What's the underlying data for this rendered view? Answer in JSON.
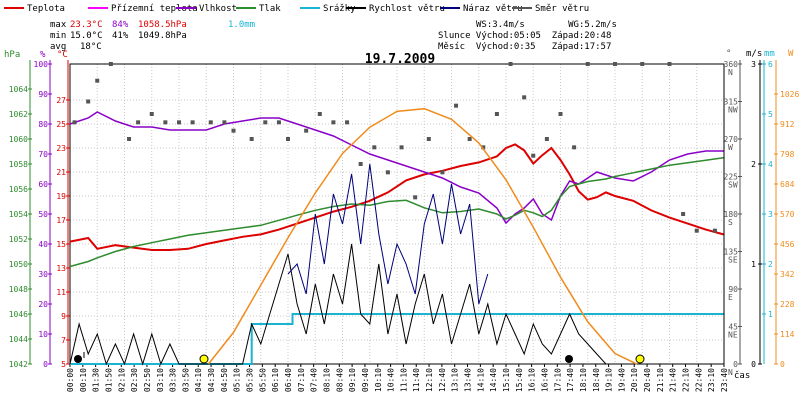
{
  "legend": [
    {
      "label": "Teplota",
      "color": "#dd0000"
    },
    {
      "label": "Přízemní teplota",
      "color": "#ff00ff"
    },
    {
      "label": "Vlhkost",
      "color": "#8a00c8"
    },
    {
      "label": "Tlak",
      "color": "#2e8b2e"
    },
    {
      "label": "Srážky",
      "color": "#19b4d2"
    },
    {
      "label": "Rychlost větru",
      "color": "#000000"
    },
    {
      "label": "Náraz větru",
      "color": "#00007a"
    },
    {
      "label": "Směr větru",
      "color": "#555555"
    }
  ],
  "stats": {
    "max_label": "max",
    "max_temp": "23.3°C",
    "max_hum": "84%",
    "max_press": "1058.5hPa",
    "max_rain": "1.0mm",
    "min_label": "min",
    "min_temp": "15.0°C",
    "min_hum": "41%",
    "min_press": "1049.8hPa",
    "avg_label": "avg",
    "avg_temp": "18°C"
  },
  "astro": {
    "line1": "WS:3.4m/s        WG:5.2m/s",
    "line2": "Slunce Východ:05:05  Západ:20:48",
    "line3": "Měsíc  Východ:0:35   Západ:17:57"
  },
  "title": "19.7.2009",
  "axis_headers": {
    "hpa": "hPa",
    "pct": "%",
    "degc": "°C",
    "deg": "°",
    "ms": "m/s",
    "mm": "mm",
    "w": "W"
  },
  "x_axis_label": "čas",
  "colors": {
    "temp": "#dd0000",
    "ground_temp": "#ff00ff",
    "humidity": "#8a00c8",
    "pressure": "#2e8b2e",
    "rain": "#19b4d2",
    "wind": "#000000",
    "gust": "#00007a",
    "direction": "#555555",
    "solar": "#f08c1e",
    "grid": "#c8c8c8"
  },
  "chart_data": {
    "type": "line",
    "title": "19.7.2009",
    "x_unit": "time",
    "x_ticks": [
      "00:00",
      "00:30",
      "01:00",
      "01:30",
      "02:00",
      "02:30",
      "03:00",
      "03:30",
      "04:00",
      "04:30",
      "05:00",
      "05:30",
      "06:00",
      "06:30",
      "07:00",
      "07:30",
      "08:00",
      "08:30",
      "09:00",
      "09:30",
      "10:00",
      "10:30",
      "11:00",
      "11:30",
      "12:00",
      "12:30",
      "13:00",
      "13:30",
      "14:00",
      "14:30",
      "15:00",
      "15:30",
      "16:00",
      "16:30",
      "17:00",
      "17:30",
      "18:00",
      "18:30",
      "19:00",
      "19:30",
      "20:00",
      "20:30",
      "21:00",
      "21:30",
      "22:00",
      "22:30",
      "23:00",
      "23:30"
    ],
    "x_tick_labels": [
      "00:00",
      "00:10",
      "01:30",
      "01:50",
      "02:10",
      "02:30",
      "02:50",
      "03:10",
      "03:30",
      "03:50",
      "04:10",
      "04:30",
      "04:50",
      "05:10",
      "05:30",
      "05:50",
      "06:10",
      "06:40",
      "07:10",
      "07:40",
      "08:10",
      "08:40",
      "09:10",
      "09:40",
      "10:10",
      "10:40",
      "11:10",
      "11:40",
      "12:10",
      "12:40",
      "13:10",
      "13:40",
      "14:10",
      "14:40",
      "15:10",
      "15:40",
      "16:10",
      "16:40",
      "17:10",
      "17:40",
      "18:10",
      "18:40",
      "19:10",
      "19:40",
      "20:10",
      "20:40",
      "21:10",
      "21:40",
      "22:10",
      "22:40",
      "23:10",
      "23:40"
    ],
    "axes": {
      "pressure_hPa": {
        "range": [
          1042,
          1066
        ],
        "ticks": [
          1042,
          1044,
          1046,
          1048,
          1050,
          1052,
          1054,
          1056,
          1058,
          1060,
          1062,
          1064
        ]
      },
      "humidity_pct": {
        "range": [
          0,
          100
        ],
        "ticks": [
          0,
          10,
          20,
          30,
          40,
          50,
          60,
          70,
          80,
          90,
          100
        ]
      },
      "temperature_C": {
        "range": [
          5,
          30
        ],
        "ticks": [
          5,
          7,
          9,
          11,
          13,
          15,
          17,
          19,
          21,
          23,
          25,
          27
        ]
      },
      "direction_deg": {
        "range": [
          0,
          360
        ],
        "ticks": [
          0,
          45,
          90,
          135,
          180,
          225,
          270,
          315,
          360
        ],
        "tick_labels": [
          "N",
          "NE",
          "E",
          "SE",
          "S",
          "SW",
          "W",
          "NW",
          "N"
        ]
      },
      "wind_ms": {
        "range": [
          0,
          3
        ],
        "ticks": [
          0,
          1,
          2,
          3
        ]
      },
      "rain_mm": {
        "range": [
          0,
          6
        ],
        "ticks": [
          1,
          2,
          3,
          4,
          5,
          6
        ]
      },
      "solar_W": {
        "range": [
          0,
          1140
        ],
        "ticks": [
          0,
          114,
          228,
          342,
          456,
          570,
          684,
          798,
          912,
          1026
        ]
      }
    },
    "series": [
      {
        "name": "Teplota",
        "unit": "°C",
        "x": [
          "00:00",
          "00:40",
          "01:00",
          "01:40",
          "02:20",
          "03:00",
          "03:40",
          "04:20",
          "05:00",
          "05:40",
          "06:20",
          "07:00",
          "07:40",
          "08:20",
          "09:00",
          "09:40",
          "10:20",
          "11:00",
          "11:40",
          "12:20",
          "13:00",
          "13:40",
          "14:20",
          "15:00",
          "15:40",
          "16:00",
          "16:20",
          "16:40",
          "17:00",
          "17:20",
          "17:40",
          "18:00",
          "18:20",
          "18:40",
          "19:00",
          "19:20",
          "19:40",
          "20:00",
          "20:40",
          "21:20",
          "22:00",
          "22:40",
          "23:20",
          "23:59"
        ],
        "y": [
          15.2,
          15.5,
          14.6,
          14.9,
          14.7,
          14.5,
          14.5,
          14.6,
          15.0,
          15.3,
          15.6,
          15.8,
          16.2,
          16.7,
          17.2,
          17.7,
          18.1,
          18.6,
          19.3,
          20.3,
          20.8,
          21.1,
          21.5,
          21.8,
          22.3,
          23.0,
          23.3,
          22.8,
          21.7,
          22.4,
          23.0,
          22.0,
          20.8,
          19.4,
          18.7,
          18.9,
          19.3,
          19.0,
          18.6,
          17.8,
          17.2,
          16.7,
          16.2,
          15.8
        ]
      },
      {
        "name": "Vlhkost",
        "unit": "%",
        "x": [
          "00:00",
          "00:40",
          "01:00",
          "01:40",
          "02:20",
          "03:00",
          "03:40",
          "04:20",
          "05:00",
          "05:40",
          "06:20",
          "07:00",
          "07:40",
          "08:20",
          "09:00",
          "09:40",
          "10:20",
          "11:00",
          "11:40",
          "12:20",
          "13:00",
          "13:40",
          "14:20",
          "15:00",
          "15:40",
          "16:00",
          "16:20",
          "16:40",
          "17:00",
          "17:20",
          "17:40",
          "18:00",
          "18:20",
          "18:40",
          "19:00",
          "19:20",
          "19:40",
          "20:00",
          "20:40",
          "21:20",
          "22:00",
          "22:40",
          "23:20",
          "23:59"
        ],
        "y": [
          80,
          82,
          84,
          81,
          79,
          79,
          78,
          78,
          78,
          80,
          81,
          82,
          82,
          80,
          78,
          76,
          73,
          70,
          68,
          66,
          64,
          62,
          59,
          57,
          52,
          47,
          50,
          52,
          55,
          50,
          48,
          56,
          61,
          60,
          62,
          64,
          63,
          62,
          61,
          64,
          68,
          70,
          71,
          71
        ]
      },
      {
        "name": "Tlak",
        "unit": "hPa",
        "x": [
          "00:00",
          "00:40",
          "01:00",
          "01:40",
          "02:20",
          "03:00",
          "03:40",
          "04:20",
          "05:00",
          "05:40",
          "06:20",
          "07:00",
          "07:40",
          "08:20",
          "09:00",
          "09:40",
          "10:20",
          "11:00",
          "11:40",
          "12:20",
          "13:00",
          "13:40",
          "14:20",
          "15:00",
          "15:40",
          "16:00",
          "16:20",
          "16:40",
          "17:00",
          "17:20",
          "17:40",
          "18:00",
          "18:20",
          "18:40",
          "19:00",
          "19:20",
          "19:40",
          "20:00",
          "20:40",
          "21:20",
          "22:00",
          "22:40",
          "23:20",
          "23:59"
        ],
        "y": [
          1049.8,
          1050.2,
          1050.5,
          1051.0,
          1051.4,
          1051.7,
          1052.0,
          1052.3,
          1052.5,
          1052.7,
          1052.9,
          1053.1,
          1053.5,
          1053.9,
          1054.3,
          1054.6,
          1054.8,
          1054.7,
          1055.0,
          1055.1,
          1054.5,
          1054.1,
          1054.2,
          1054.4,
          1054.0,
          1053.6,
          1053.9,
          1054.3,
          1054.1,
          1053.8,
          1054.3,
          1055.4,
          1056.2,
          1056.4,
          1056.6,
          1056.7,
          1056.8,
          1057.0,
          1057.3,
          1057.6,
          1057.9,
          1058.1,
          1058.3,
          1058.5
        ]
      },
      {
        "name": "Srážky",
        "unit": "mm",
        "x": [
          "00:00",
          "06:40",
          "06:40",
          "08:10",
          "08:10",
          "23:59"
        ],
        "y": [
          0,
          0,
          0.8,
          0.8,
          1.0,
          1.0
        ]
      },
      {
        "name": "Rychlost větru",
        "unit": "m/s",
        "x": [
          "00:00",
          "00:20",
          "00:40",
          "01:00",
          "01:20",
          "01:40",
          "02:00",
          "02:20",
          "02:40",
          "03:00",
          "03:20",
          "03:40",
          "04:00",
          "06:20",
          "06:40",
          "07:00",
          "07:20",
          "07:40",
          "08:00",
          "08:20",
          "08:40",
          "09:00",
          "09:20",
          "09:40",
          "10:00",
          "10:20",
          "10:40",
          "11:00",
          "11:20",
          "11:40",
          "12:00",
          "12:20",
          "12:40",
          "13:00",
          "13:20",
          "13:40",
          "14:00",
          "14:20",
          "14:40",
          "15:00",
          "15:20",
          "15:40",
          "16:00",
          "16:20",
          "16:40",
          "17:00",
          "17:20",
          "17:40",
          "18:00",
          "18:20",
          "18:40",
          "19:00",
          "19:20",
          "19:40",
          "20:00",
          "23:59"
        ],
        "y": [
          0,
          0.4,
          0.1,
          0.3,
          0,
          0.2,
          0,
          0.3,
          0,
          0.3,
          0,
          0.2,
          0,
          0,
          0.4,
          0.2,
          0.5,
          0.8,
          1.1,
          0.6,
          0.3,
          0.8,
          0.4,
          0.9,
          0.6,
          1.2,
          0.5,
          0.4,
          1.0,
          0.3,
          0.7,
          0.2,
          0.6,
          0.9,
          0.4,
          0.7,
          0.2,
          0.5,
          0.8,
          0.3,
          0.6,
          0.2,
          0.5,
          0.3,
          0.1,
          0.4,
          0.2,
          0.1,
          0.3,
          0.5,
          0.3,
          0.2,
          0.1,
          0,
          0,
          0
        ]
      },
      {
        "name": "Náraz větru",
        "unit": "m/s",
        "x": [
          "08:00",
          "08:20",
          "08:40",
          "09:00",
          "09:20",
          "09:40",
          "10:00",
          "10:20",
          "10:40",
          "11:00",
          "11:20",
          "11:40",
          "12:00",
          "12:20",
          "12:40",
          "13:00",
          "13:20",
          "13:40",
          "14:00",
          "14:20",
          "14:40",
          "15:00",
          "15:20"
        ],
        "y": [
          0.9,
          1.0,
          0.7,
          1.5,
          1.0,
          1.7,
          1.4,
          1.9,
          1.2,
          2.0,
          1.3,
          0.8,
          1.2,
          1.0,
          0.7,
          1.4,
          1.7,
          1.2,
          1.8,
          1.3,
          1.6,
          0.6,
          0.9
        ]
      },
      {
        "name": "Směr větru",
        "unit": "°",
        "type": "scatter",
        "x": [
          "00:10",
          "00:40",
          "01:00",
          "01:30",
          "02:10",
          "02:30",
          "03:00",
          "03:30",
          "04:00",
          "04:30",
          "05:10",
          "05:40",
          "06:00",
          "06:40",
          "07:10",
          "07:40",
          "08:00",
          "08:40",
          "09:10",
          "09:40",
          "10:10",
          "10:40",
          "11:10",
          "11:40",
          "12:10",
          "12:40",
          "13:10",
          "13:40",
          "14:10",
          "14:40",
          "15:10",
          "15:40",
          "16:10",
          "16:40",
          "17:00",
          "17:30",
          "18:00",
          "18:30",
          "19:00",
          "20:00",
          "21:00",
          "22:00",
          "22:30",
          "23:00",
          "23:40"
        ],
        "y": [
          290,
          315,
          340,
          360,
          270,
          290,
          300,
          290,
          290,
          290,
          290,
          290,
          280,
          270,
          290,
          290,
          270,
          280,
          300,
          290,
          290,
          240,
          260,
          230,
          260,
          200,
          270,
          230,
          310,
          270,
          260,
          300,
          360,
          320,
          250,
          270,
          300,
          260,
          360,
          360,
          360,
          360,
          180,
          160,
          160
        ]
      },
      {
        "name": "Sluneční záření",
        "unit": "W",
        "type": "area",
        "x": [
          "05:05",
          "06:00",
          "07:00",
          "08:00",
          "09:00",
          "10:00",
          "11:00",
          "12:00",
          "13:00",
          "14:00",
          "15:00",
          "16:00",
          "17:00",
          "18:00",
          "19:00",
          "20:00",
          "20:48"
        ],
        "y": [
          0,
          120,
          300,
          480,
          650,
          800,
          900,
          960,
          970,
          930,
          840,
          700,
          520,
          330,
          160,
          40,
          0
        ]
      }
    ]
  }
}
